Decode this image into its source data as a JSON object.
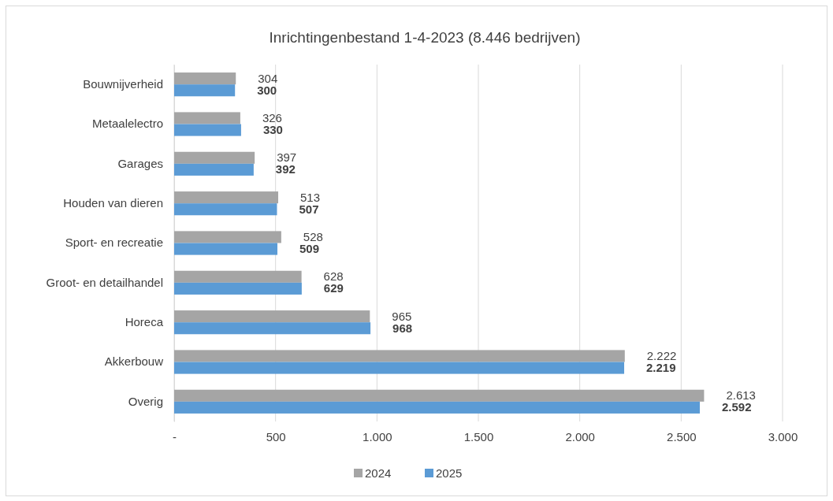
{
  "chart_data": {
    "type": "bar",
    "orientation": "horizontal",
    "title": "Inrichtingenbestand 1-4-2023  (8.446 bedrijven)",
    "categories": [
      "Bouwnijverheid",
      "Metaalelectro",
      "Garages",
      "Houden van dieren",
      "Sport- en recreatie",
      "Groot- en detailhandel",
      "Horeca",
      "Akkerbouw",
      "Overig"
    ],
    "series": [
      {
        "name": "2024",
        "color": "#a5a5a5",
        "values": [
          304,
          326,
          397,
          513,
          528,
          628,
          965,
          2222,
          2613
        ],
        "value_labels": [
          "304",
          "326",
          "397",
          "513",
          "528",
          "628",
          "965",
          "2.222",
          "2.613"
        ]
      },
      {
        "name": "2025",
        "color": "#5b9bd5",
        "values": [
          300,
          330,
          392,
          507,
          509,
          629,
          968,
          2219,
          2592
        ],
        "value_labels": [
          "300",
          "330",
          "392",
          "507",
          "509",
          "629",
          "968",
          "2.219",
          "2.592"
        ]
      }
    ],
    "xlim": [
      0,
      3000
    ],
    "xticks": [
      {
        "value": 0,
        "label": "-"
      },
      500,
      {
        "value": 1000,
        "label": "1.000"
      },
      {
        "value": 1500,
        "label": "1.500"
      },
      {
        "value": 2000,
        "label": "2.000"
      },
      {
        "value": 2500,
        "label": "2.500"
      },
      {
        "value": 3000,
        "label": "3.000"
      }
    ],
    "grid": "x",
    "legend": "bottom"
  }
}
